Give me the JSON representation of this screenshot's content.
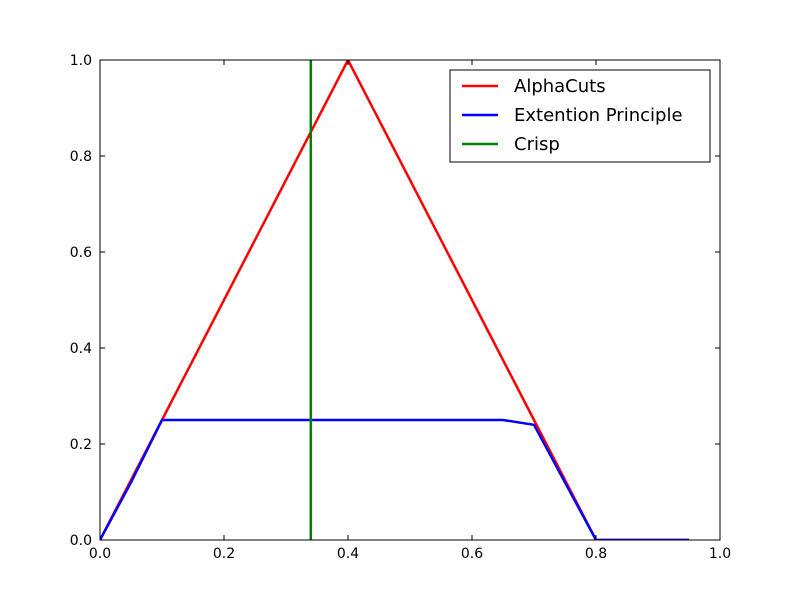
{
  "chart_data": {
    "type": "line",
    "title": "",
    "xlabel": "",
    "ylabel": "",
    "xlim": [
      0.0,
      1.0
    ],
    "ylim": [
      0.0,
      1.0
    ],
    "xticks": [
      0.0,
      0.2,
      0.4,
      0.6,
      0.8,
      1.0
    ],
    "yticks": [
      0.0,
      0.2,
      0.4,
      0.6,
      0.8,
      1.0
    ],
    "xtick_labels": [
      "0.0",
      "0.2",
      "0.4",
      "0.6",
      "0.8",
      "1.0"
    ],
    "ytick_labels": [
      "0.0",
      "0.2",
      "0.4",
      "0.6",
      "0.8",
      "1.0"
    ],
    "grid": false,
    "legend_position": "top-right",
    "series": [
      {
        "name": "AlphaCuts",
        "color": "#ff0000",
        "x": [
          0.0,
          0.1,
          0.4,
          0.7,
          0.8,
          0.95
        ],
        "y": [
          0.0,
          0.25,
          1.0,
          0.25,
          0.0,
          0.0
        ]
      },
      {
        "name": "Extention Principle",
        "color": "#0000ff",
        "x": [
          0.0,
          0.05,
          0.1,
          0.65,
          0.7,
          0.8,
          0.95
        ],
        "y": [
          0.0,
          0.12,
          0.25,
          0.25,
          0.24,
          0.0,
          0.0
        ]
      },
      {
        "name": "Crisp",
        "color": "#008000",
        "x": [
          0.34,
          0.34
        ],
        "y": [
          0.0,
          1.0
        ]
      }
    ]
  }
}
